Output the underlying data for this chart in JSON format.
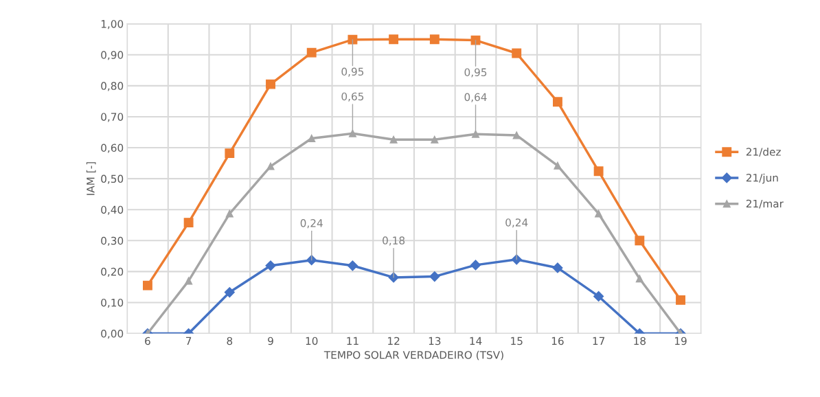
{
  "chart_data": {
    "type": "line",
    "xlabel": "TEMPO SOLAR VERDADEIRO (TSV)",
    "ylabel": "IAM [-]",
    "categories": [
      "6",
      "7",
      "8",
      "9",
      "10",
      "11",
      "12",
      "13",
      "14",
      "15",
      "16",
      "17",
      "18",
      "19"
    ],
    "series": [
      {
        "name": "21/dez",
        "color": "#ed7d31",
        "marker": "square",
        "values": [
          0.155,
          0.358,
          0.582,
          0.805,
          0.907,
          0.949,
          0.95,
          0.95,
          0.947,
          0.905,
          0.748,
          0.524,
          0.3,
          0.108
        ]
      },
      {
        "name": "21/jun",
        "color": "#4472c4",
        "marker": "diamond",
        "values": [
          0,
          0,
          0.133,
          0.219,
          0.237,
          0.219,
          0.181,
          0.184,
          0.221,
          0.239,
          0.212,
          0.12,
          0,
          0
        ]
      },
      {
        "name": "21/mar",
        "color": "#a5a5a5",
        "marker": "triangle",
        "values": [
          0,
          0.17,
          0.387,
          0.54,
          0.63,
          0.646,
          0.626,
          0.626,
          0.644,
          0.64,
          0.542,
          0.387,
          0.177,
          0
        ]
      }
    ],
    "annotations": [
      {
        "text": "0,95",
        "x": "11",
        "y": 0.949
      },
      {
        "text": "0,95",
        "x": "14",
        "y": 0.947
      },
      {
        "text": "0,65",
        "x": "11",
        "y": 0.646
      },
      {
        "text": "0,64",
        "x": "14",
        "y": 0.644
      },
      {
        "text": "0,24",
        "x": "10",
        "y": 0.237
      },
      {
        "text": "0,18",
        "x": "12",
        "y": 0.181
      },
      {
        "text": "0,24",
        "x": "15",
        "y": 0.239
      }
    ],
    "ylim": [
      0,
      1
    ],
    "yticks": [
      {
        "value": 0,
        "label": "0,00"
      },
      {
        "value": 0.1,
        "label": "0,10"
      },
      {
        "value": 0.2,
        "label": "0,20"
      },
      {
        "value": 0.3,
        "label": "0,30"
      },
      {
        "value": 0.4,
        "label": "0,40"
      },
      {
        "value": 0.5,
        "label": "0,50"
      },
      {
        "value": 0.6,
        "label": "0,60"
      },
      {
        "value": 0.7,
        "label": "0,70"
      },
      {
        "value": 0.8,
        "label": "0,80"
      },
      {
        "value": 0.9,
        "label": "0,90"
      },
      {
        "value": 1,
        "label": "1,00"
      }
    ],
    "grid": true,
    "legend": "right",
    "line_style": "solid"
  }
}
